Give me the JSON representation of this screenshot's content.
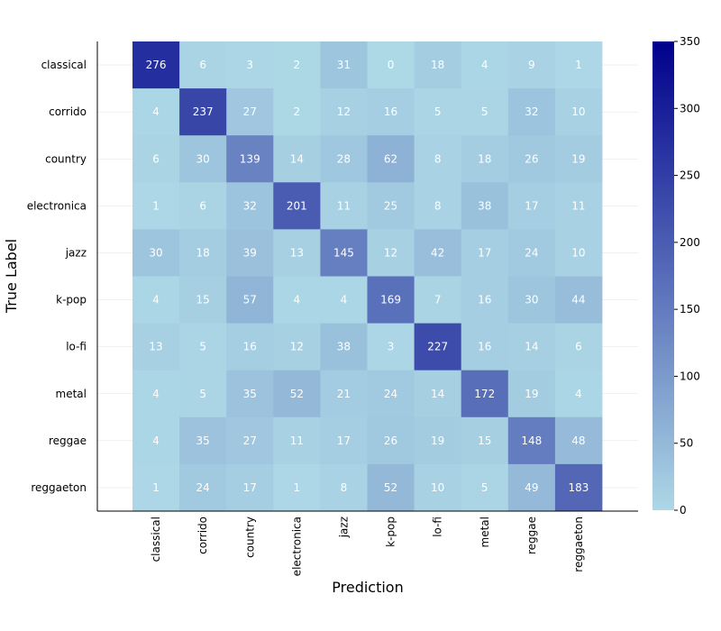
{
  "chart_data": {
    "type": "heatmap",
    "xlabel": "Prediction",
    "ylabel": "True Label",
    "x_categories": [
      "classical",
      "corrido",
      "country",
      "electronica",
      "jazz",
      "k-pop",
      "lo-fi",
      "metal",
      "reggae",
      "reggaeton"
    ],
    "y_categories": [
      "classical",
      "corrido",
      "country",
      "electronica",
      "jazz",
      "k-pop",
      "lo-fi",
      "metal",
      "reggae",
      "reggaeton"
    ],
    "values": [
      [
        276,
        6,
        3,
        2,
        31,
        0,
        18,
        4,
        9,
        1
      ],
      [
        4,
        237,
        27,
        2,
        12,
        16,
        5,
        5,
        32,
        10
      ],
      [
        6,
        30,
        139,
        14,
        28,
        62,
        8,
        18,
        26,
        19
      ],
      [
        1,
        6,
        32,
        201,
        11,
        25,
        8,
        38,
        17,
        11
      ],
      [
        30,
        18,
        39,
        13,
        145,
        12,
        42,
        17,
        24,
        10
      ],
      [
        4,
        15,
        57,
        4,
        4,
        169,
        7,
        16,
        30,
        44
      ],
      [
        13,
        5,
        16,
        12,
        38,
        3,
        227,
        16,
        14,
        6
      ],
      [
        4,
        5,
        35,
        52,
        21,
        24,
        14,
        172,
        19,
        4
      ],
      [
        4,
        35,
        27,
        11,
        17,
        26,
        19,
        15,
        148,
        48
      ],
      [
        1,
        24,
        17,
        1,
        8,
        52,
        10,
        5,
        49,
        183
      ]
    ],
    "colorbar": {
      "min": 0,
      "max": 350,
      "ticks": [
        "0",
        "50",
        "100",
        "150",
        "200",
        "250",
        "300",
        "350"
      ],
      "color_low": "#add8e6",
      "color_high": "#00008b"
    },
    "grid": true,
    "legend": "colorbar-right"
  }
}
